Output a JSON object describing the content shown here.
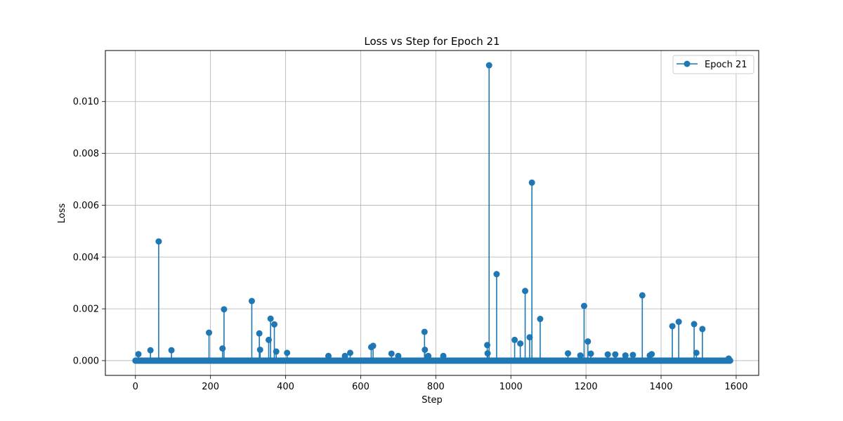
{
  "chart_data": {
    "type": "line",
    "title": "Loss vs Step for Epoch 21",
    "xlabel": "Step",
    "ylabel": "Loss",
    "xlim": [
      -80,
      1660
    ],
    "ylim": [
      -0.00057,
      0.01197
    ],
    "xticks": [
      0,
      200,
      400,
      600,
      800,
      1000,
      1200,
      1400,
      1600
    ],
    "xtick_labels": [
      "0",
      "200",
      "400",
      "600",
      "800",
      "1000",
      "1200",
      "1400",
      "1600"
    ],
    "yticks": [
      0.0,
      0.002,
      0.004,
      0.006,
      0.008,
      0.01
    ],
    "ytick_labels": [
      "0.000",
      "0.002",
      "0.004",
      "0.006",
      "0.008",
      "0.010"
    ],
    "grid": true,
    "legend_position": "top-right",
    "color": "#1f77b4",
    "baseline_value": 0.0,
    "x_range": [
      0,
      1584
    ],
    "series": [
      {
        "name": "Epoch 21",
        "marker": "circle",
        "points": [
          [
            8,
            0.00025
          ],
          [
            40,
            0.0004
          ],
          [
            62,
            0.0046
          ],
          [
            96,
            0.0004
          ],
          [
            196,
            0.00108
          ],
          [
            232,
            0.00047
          ],
          [
            236,
            0.00198
          ],
          [
            310,
            0.0023
          ],
          [
            330,
            0.00105
          ],
          [
            332,
            0.00042
          ],
          [
            355,
            0.0008
          ],
          [
            360,
            0.00162
          ],
          [
            370,
            0.0014
          ],
          [
            375,
            0.00035
          ],
          [
            404,
            0.0003
          ],
          [
            514,
            0.00018
          ],
          [
            558,
            0.00018
          ],
          [
            572,
            0.0003
          ],
          [
            628,
            0.00052
          ],
          [
            633,
            0.00057
          ],
          [
            682,
            0.00027
          ],
          [
            700,
            0.00018
          ],
          [
            770,
            0.00111
          ],
          [
            771,
            0.00042
          ],
          [
            780,
            0.00018
          ],
          [
            820,
            0.00018
          ],
          [
            937,
            0.0006
          ],
          [
            938,
            0.00028
          ],
          [
            942,
            0.0114
          ],
          [
            962,
            0.00334
          ],
          [
            1010,
            0.0008
          ],
          [
            1025,
            0.00066
          ],
          [
            1038,
            0.00269
          ],
          [
            1050,
            0.0009
          ],
          [
            1056,
            0.00687
          ],
          [
            1078,
            0.00161
          ],
          [
            1152,
            0.00028
          ],
          [
            1185,
            0.0002
          ],
          [
            1195,
            0.00211
          ],
          [
            1205,
            0.00074
          ],
          [
            1213,
            0.00027
          ],
          [
            1258,
            0.00024
          ],
          [
            1278,
            0.00024
          ],
          [
            1305,
            0.0002
          ],
          [
            1325,
            0.00022
          ],
          [
            1350,
            0.00252
          ],
          [
            1370,
            0.0002
          ],
          [
            1375,
            0.00025
          ],
          [
            1430,
            0.00133
          ],
          [
            1447,
            0.0015
          ],
          [
            1488,
            0.00141
          ],
          [
            1494,
            0.0003
          ],
          [
            1510,
            0.00122
          ],
          [
            1580,
            8e-05
          ]
        ]
      }
    ]
  }
}
